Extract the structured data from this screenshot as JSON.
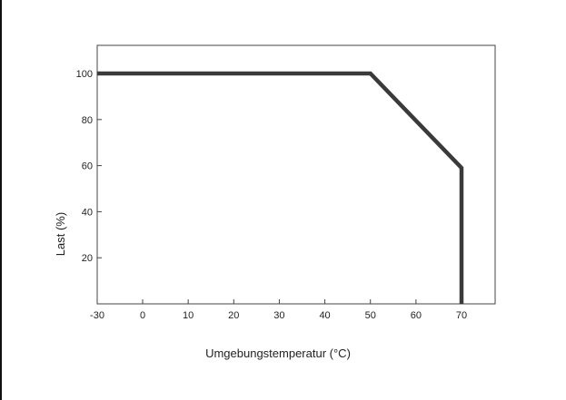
{
  "chart_data": {
    "type": "line",
    "xlabel": "Umgebungstemperatur (°C)",
    "ylabel": "Last (%)",
    "xlim": [
      -30,
      77
    ],
    "ylim": [
      0,
      110
    ],
    "x_ticks": [
      -30,
      0,
      10,
      20,
      30,
      40,
      50,
      60,
      70
    ],
    "y_ticks": [
      20,
      40,
      60,
      80,
      100
    ],
    "series": [
      {
        "x": [
          -30,
          50,
          70,
          70
        ],
        "y": [
          100,
          100,
          59,
          0
        ]
      }
    ],
    "grid": false,
    "line_color": "#3a3a3a"
  }
}
